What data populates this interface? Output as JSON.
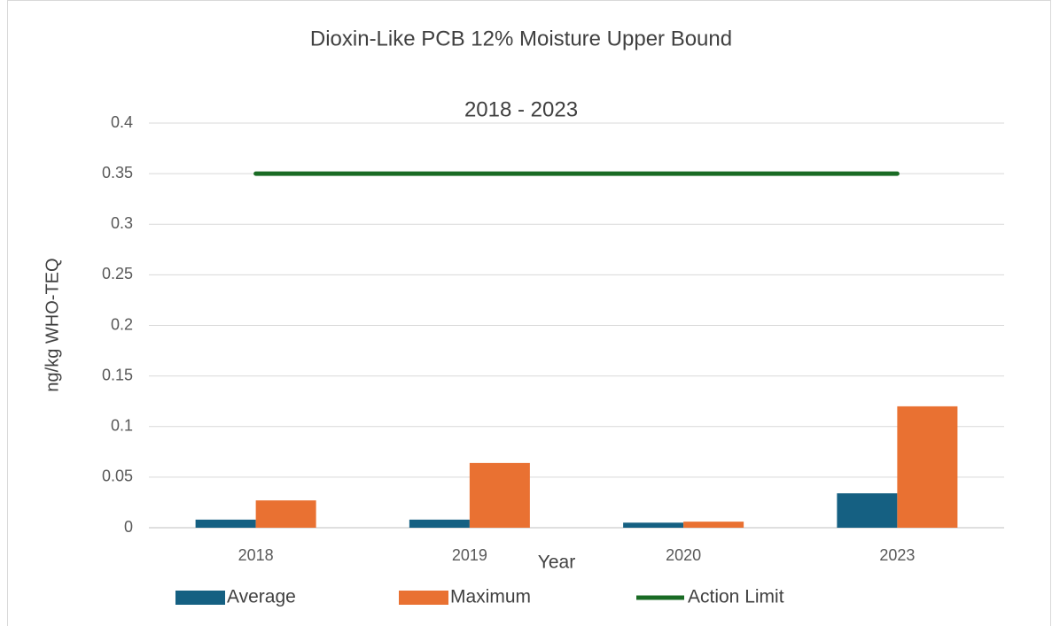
{
  "chart_data": {
    "type": "bar",
    "title": "Dioxin-Like PCB 12% Moisture Upper Bound",
    "subtitle": "2018 - 2023",
    "x_label": "Year",
    "y_label": "ng/kg WHO-TEQ",
    "categories": [
      "2018",
      "2019",
      "2020",
      "2023"
    ],
    "series": [
      {
        "name": "Average",
        "color": "#156082",
        "type": "bar",
        "values": [
          0.008,
          0.008,
          0.005,
          0.034
        ]
      },
      {
        "name": "Maximum",
        "color": "#e97132",
        "type": "bar",
        "values": [
          0.027,
          0.064,
          0.006,
          0.12
        ]
      },
      {
        "name": "Action Limit",
        "color": "#196b24",
        "type": "line",
        "values": [
          0.35,
          0.35,
          0.35,
          0.35
        ]
      }
    ],
    "ylim": [
      0,
      0.4
    ],
    "yticks": [
      0,
      0.05,
      0.1,
      0.15,
      0.2,
      0.25,
      0.3,
      0.35,
      0.4
    ],
    "grid": true,
    "legend": "bottom"
  }
}
